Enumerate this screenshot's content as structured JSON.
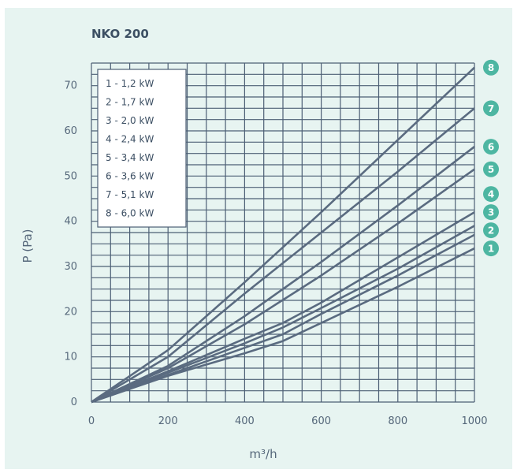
{
  "chart_data": {
    "type": "line",
    "title": "NKO 200",
    "xlabel": "m³/h",
    "ylabel": "P (Pa)",
    "xlim": [
      0,
      1000
    ],
    "ylim": [
      0,
      75
    ],
    "x_ticks": [
      0,
      200,
      400,
      600,
      800,
      1000
    ],
    "y_ticks": [
      0,
      10,
      20,
      30,
      40,
      50,
      60,
      70
    ],
    "grid": true,
    "legend_position": "top-left",
    "colors": {
      "background": "#e7f4f1",
      "grid": "#4d5f75",
      "line": "#5a6b80",
      "badge": "#4db6a2",
      "text": "#3c4f63"
    },
    "series": [
      {
        "name": "1",
        "legend": "1 - 1,2 kW",
        "x": [
          0,
          200,
          400,
          500,
          600,
          800,
          1000
        ],
        "y": [
          0,
          5.8,
          10.8,
          13.5,
          17.5,
          25.5,
          34
        ]
      },
      {
        "name": "2",
        "legend": "2 - 1,7 kW",
        "x": [
          0,
          200,
          400,
          500,
          600,
          800,
          1000
        ],
        "y": [
          0,
          6.0,
          12.0,
          15.0,
          19.5,
          28.0,
          37
        ]
      },
      {
        "name": "3",
        "legend": "3 - 2,0 kW",
        "x": [
          0,
          200,
          400,
          500,
          600,
          800,
          1000
        ],
        "y": [
          0,
          6.5,
          13.0,
          16.5,
          20.8,
          29.5,
          39
        ]
      },
      {
        "name": "4",
        "legend": "4 - 2,4 kW",
        "x": [
          0,
          200,
          400,
          500,
          600,
          800,
          1000
        ],
        "y": [
          0,
          6.8,
          14.0,
          17.5,
          22.0,
          32.0,
          42
        ]
      },
      {
        "name": "5",
        "legend": "5 - 3,4 kW",
        "x": [
          0,
          200,
          400,
          600,
          800,
          1000
        ],
        "y": [
          0,
          7.5,
          17.2,
          28.0,
          39.5,
          51.5
        ]
      },
      {
        "name": "6",
        "legend": "6 - 3,6 kW",
        "x": [
          0,
          200,
          400,
          600,
          800,
          1000
        ],
        "y": [
          0,
          8.0,
          19.0,
          31.0,
          43.5,
          56.5
        ]
      },
      {
        "name": "7",
        "legend": "7 - 5,1 kW",
        "x": [
          0,
          200,
          400,
          600,
          800,
          1000
        ],
        "y": [
          0,
          10.0,
          24.0,
          37.5,
          51.0,
          65
        ]
      },
      {
        "name": "8",
        "legend": "8 - 6,0 kW",
        "x": [
          0,
          200,
          400,
          600,
          800,
          1000
        ],
        "y": [
          0,
          11.5,
          26.5,
          42.0,
          58.0,
          74
        ]
      }
    ]
  }
}
